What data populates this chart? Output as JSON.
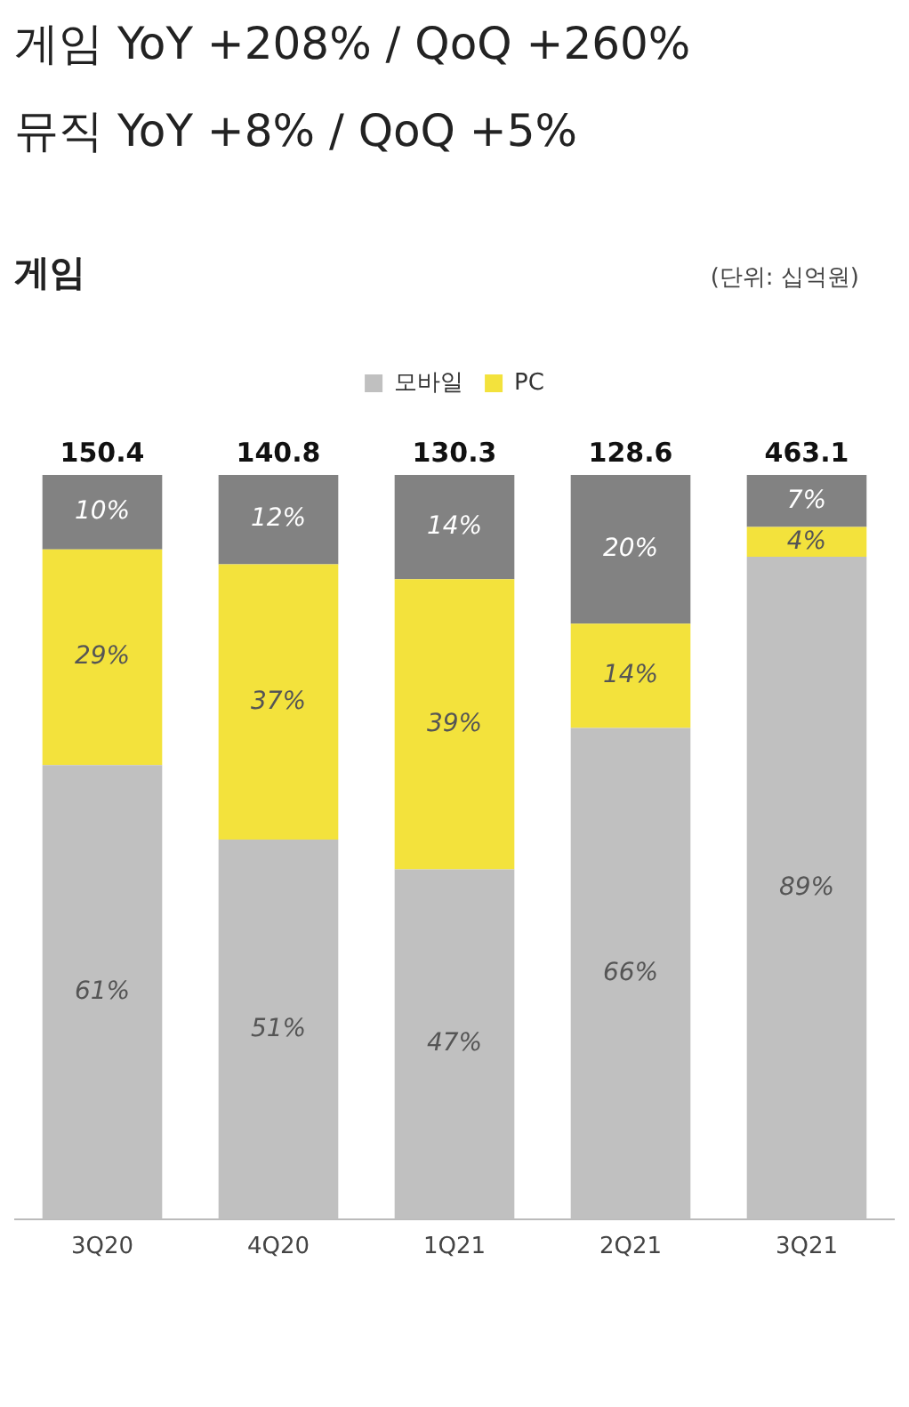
{
  "chart_data": {
    "type": "bar",
    "title": "게임  YoY +208% / QoQ +260%",
    "subtitle": "뮤직  YoY +8% / QoQ +5%",
    "categories": [
      "3Q20",
      "4Q20",
      "1Q21",
      "2Q21",
      "3Q21"
    ],
    "stacked": true,
    "legend": "top",
    "tick_labels": "x",
    "grid": false,
    "annotations": [
      "게임",
      "(단위: 십억원)",
      {
        "text": "150.4",
        "x": "3Q20",
        "y": 100
      },
      {
        "text": "140.8",
        "x": "4Q20",
        "y": 100
      },
      {
        "text": "130.3",
        "x": "1Q21",
        "y": 100
      },
      {
        "text": "128.6",
        "x": "2Q21",
        "y": 100
      },
      {
        "text": "463.1",
        "x": "3Q21",
        "y": 100
      }
    ],
    "series": [
      {
        "name": "모바일",
        "color": "#c0c0c0",
        "values": [
          61,
          51,
          47,
          66,
          89
        ],
        "value_labels": [
          "61%",
          "51%",
          "47%",
          "66%",
          "89%"
        ]
      },
      {
        "name": "PC",
        "color": "#f3e23c",
        "values": [
          29,
          37,
          39,
          14,
          4
        ],
        "value_labels": [
          "29%",
          "37%",
          "39%",
          "14%",
          "4%"
        ]
      },
      {
        "color": "#828282",
        "values": [
          10,
          12,
          14,
          20,
          7
        ],
        "value_labels": [
          "10%",
          "12%",
          "14%",
          "20%",
          "7%"
        ]
      }
    ]
  }
}
